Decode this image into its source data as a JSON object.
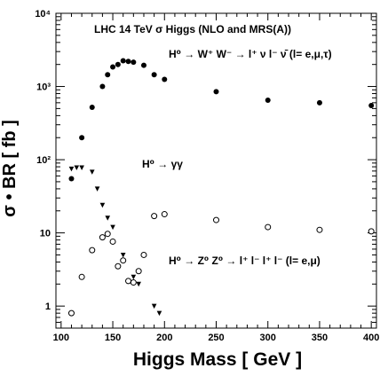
{
  "chart_data": {
    "type": "scatter",
    "title": "LHC 14 TeV σ Higgs (NLO and MRS(A))",
    "xlabel": "Higgs Mass [ GeV ]",
    "ylabel": "σ • BR [ fb ]",
    "xscale": "linear",
    "yscale": "log",
    "xlim": [
      95,
      405
    ],
    "ylim": [
      0.5,
      10000
    ],
    "grid": false,
    "xticks": [
      100,
      150,
      200,
      250,
      300,
      350,
      400
    ],
    "xtick_labels": [
      "100",
      "150",
      "200",
      "250",
      "300",
      "350",
      "400"
    ],
    "yticks": [
      1,
      10,
      100,
      1000,
      10000
    ],
    "ytick_labels": [
      "1",
      "10",
      "10²",
      "10³",
      "10⁴"
    ],
    "series": [
      {
        "label": "H⁰ → W⁺ W⁻ → l⁺ ν l⁻ ν̄ (l= e,μ,τ)",
        "marker": "filled-circle",
        "x": [
          110,
          120,
          130,
          140,
          145,
          150,
          155,
          160,
          165,
          170,
          180,
          190,
          200,
          250,
          300,
          350,
          400
        ],
        "y": [
          55,
          200,
          520,
          1000,
          1450,
          1850,
          2000,
          2250,
          2200,
          2150,
          1950,
          1450,
          1250,
          850,
          650,
          600,
          550
        ]
      },
      {
        "label": "H⁰ → γγ",
        "marker": "down-triangle",
        "x": [
          110,
          115,
          120,
          130,
          135,
          140,
          145,
          150,
          160,
          170,
          175,
          190,
          195
        ],
        "y": [
          75,
          78,
          78,
          68,
          40,
          24,
          16,
          12,
          5,
          2.5,
          2,
          1,
          0.8
        ]
      },
      {
        "label": "H⁰ → Z⁰ Z⁰ → l⁺ l⁻ l⁺ l⁻ (l= e,μ)",
        "marker": "open-circle",
        "x": [
          110,
          120,
          130,
          140,
          145,
          150,
          155,
          160,
          165,
          170,
          175,
          180,
          190,
          200,
          250,
          300,
          350,
          400
        ],
        "y": [
          0.8,
          2.5,
          5.8,
          8.7,
          9.7,
          7.6,
          3.5,
          4.2,
          2.2,
          2.1,
          3.0,
          5.0,
          17,
          18,
          15,
          12,
          11,
          10.5
        ]
      }
    ]
  }
}
